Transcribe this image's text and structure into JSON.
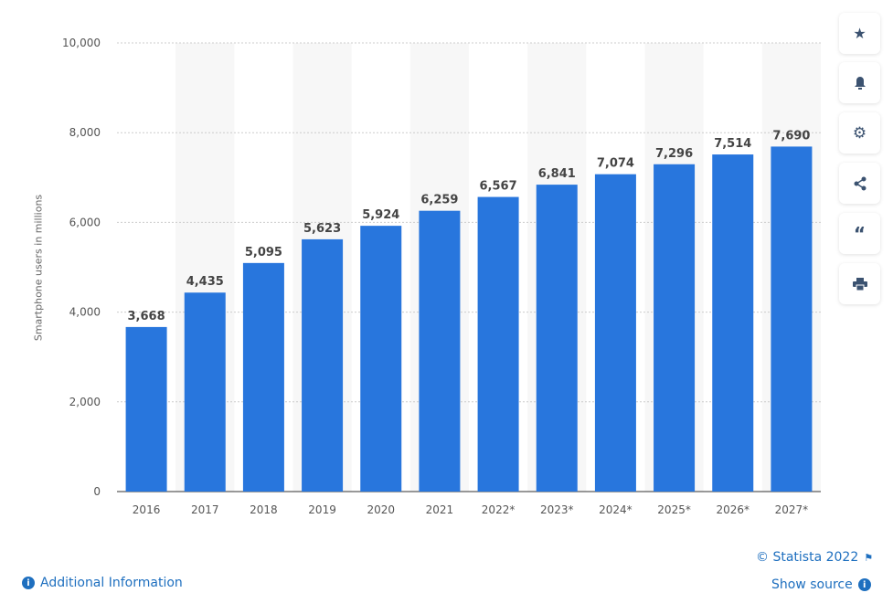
{
  "chart_data": {
    "type": "bar",
    "categories": [
      "2016",
      "2017",
      "2018",
      "2019",
      "2020",
      "2021",
      "2022*",
      "2023*",
      "2024*",
      "2025*",
      "2026*",
      "2027*"
    ],
    "values": [
      3668,
      4435,
      5095,
      5623,
      5924,
      6259,
      6567,
      6841,
      7074,
      7296,
      7514,
      7690
    ],
    "data_labels": [
      "3,668",
      "4,435",
      "5,095",
      "5,623",
      "5,924",
      "6,259",
      "6,567",
      "6,841",
      "7,074",
      "7,296",
      "7,514",
      "7,690"
    ],
    "ylabel": "Smartphone users in millions",
    "xlabel": "",
    "ylim": [
      0,
      10000
    ],
    "yticks": [
      0,
      2000,
      4000,
      6000,
      8000,
      10000
    ],
    "ytick_labels": [
      "0",
      "2,000",
      "4,000",
      "6,000",
      "8,000",
      "10,000"
    ],
    "grid": true,
    "bar_color": "#2876dd",
    "band_color": "#f7f7f7"
  },
  "sidebar": {
    "buttons": [
      "star-icon",
      "bell-icon",
      "gear-icon",
      "share-icon",
      "quote-icon",
      "print-icon"
    ]
  },
  "footer": {
    "copyright": "© Statista 2022",
    "additional_info": "Additional Information",
    "show_source": "Show source"
  }
}
